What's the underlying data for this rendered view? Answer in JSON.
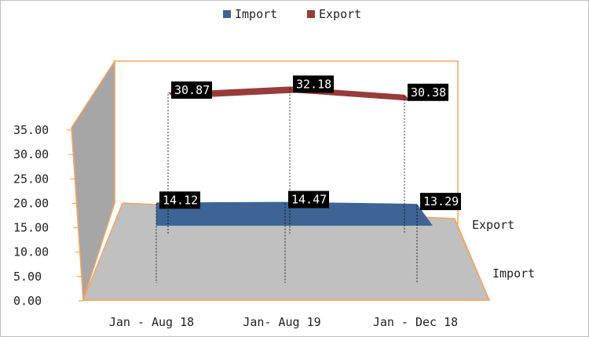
{
  "chart_data": {
    "type": "area",
    "style": "3d-area",
    "categories": [
      "Jan - Aug 18",
      "Jan- Aug 19",
      "Jan - Dec 18"
    ],
    "series": [
      {
        "name": "Import",
        "values": [
          14.12,
          14.47,
          13.29
        ],
        "color": "#3e6496",
        "value_labels": [
          "14.12",
          "14.47",
          "13.29"
        ]
      },
      {
        "name": "Export",
        "values": [
          30.87,
          32.18,
          30.38
        ],
        "color": "#963c3a",
        "value_labels": [
          "30.87",
          "32.18",
          "30.38"
        ]
      }
    ],
    "y_ticks": [
      "0.00",
      "5.00",
      "10.00",
      "15.00",
      "20.00",
      "25.00",
      "30.00",
      "35.00"
    ],
    "ylim": [
      0,
      35
    ],
    "depth_labels": [
      "Import",
      "Export"
    ],
    "legend": {
      "position": "top",
      "entries": [
        "Import",
        "Export"
      ]
    },
    "data_label_style": {
      "background": "#000000",
      "text": "#ffffff"
    },
    "colors": {
      "floor": "#c0c0c0",
      "side_wall": "#a6a6a6",
      "frame_border": "#f4a460",
      "leader_line": "#000000"
    }
  }
}
